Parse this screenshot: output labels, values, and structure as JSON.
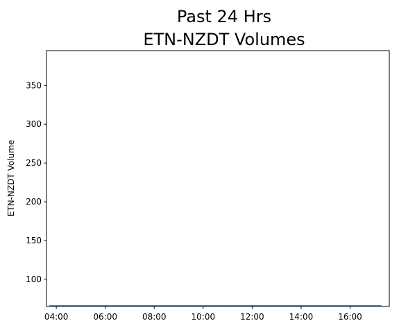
{
  "chart_data": {
    "type": "line",
    "title_lines": [
      "Past 24 Hrs",
      "ETN-NZDT Volumes"
    ],
    "xlabel": "",
    "ylabel": "ETN-NZDT Volume",
    "x_ticks": [
      "04:00",
      "06:00",
      "08:00",
      "10:00",
      "12:00",
      "14:00",
      "16:00"
    ],
    "y_ticks": [
      100,
      150,
      200,
      250,
      300,
      350
    ],
    "ylim": [
      65,
      395
    ],
    "grid": false,
    "series": [
      {
        "color": "#d62728",
        "style": "dashed",
        "x": [
          "03:43",
          "17:17"
        ],
        "y": [
          65,
          65
        ]
      },
      {
        "color": "#1f77b4",
        "style": "solid",
        "x": [
          "03:43",
          "17:17"
        ],
        "y": [
          65,
          65
        ]
      }
    ]
  }
}
